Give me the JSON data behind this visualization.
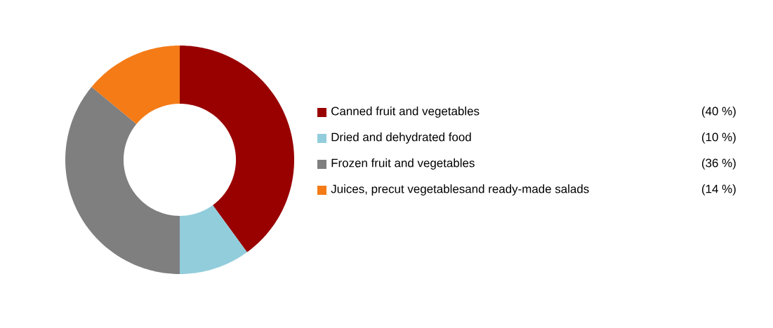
{
  "chart_data": {
    "type": "donut",
    "categories": [
      "Canned fruit and vegetables",
      "Dried and dehydrated food",
      "Frozen fruit and vegetables",
      "Juices, precut vegetablesand ready-made salads"
    ],
    "values": [
      40,
      10,
      36,
      14
    ],
    "colors": [
      "#990000",
      "#92cddc",
      "#7f7f7f",
      "#f47b16"
    ],
    "value_labels": [
      "(40 %)",
      "(10 %)",
      "(36 %)",
      "(14 %)"
    ],
    "legend": "right"
  }
}
